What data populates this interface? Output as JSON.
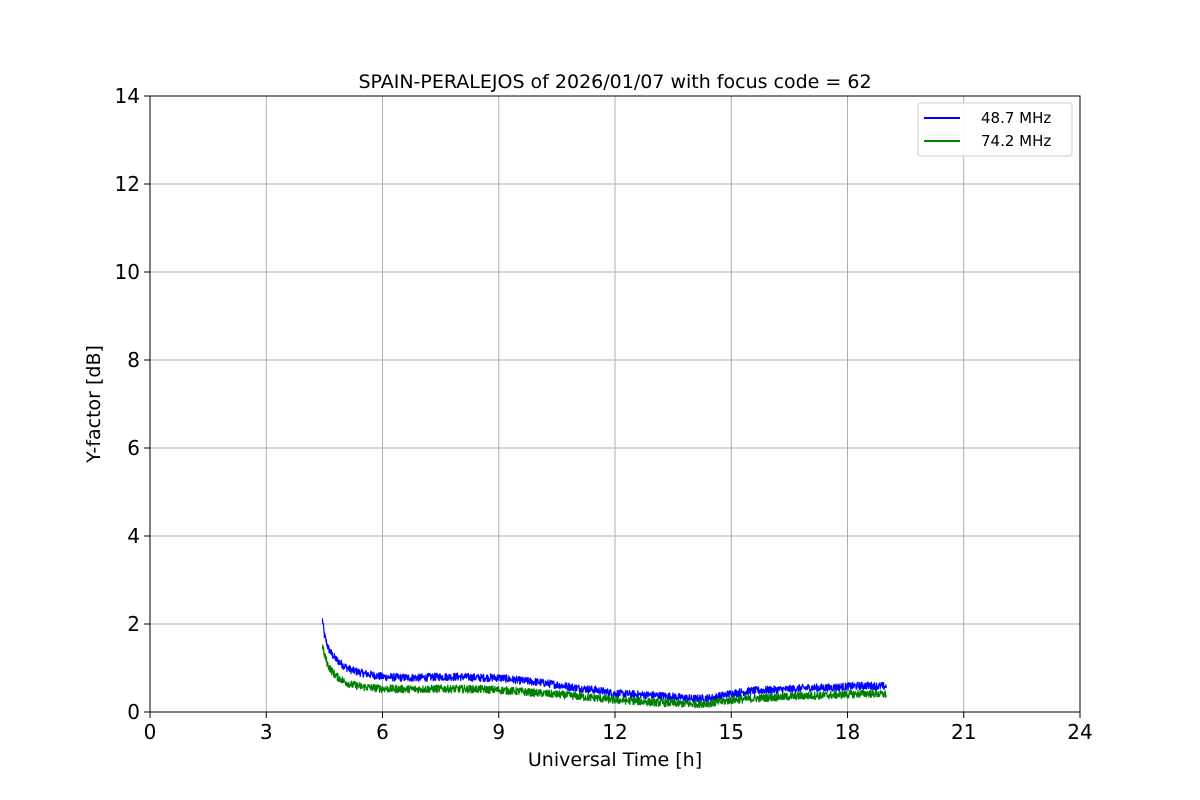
{
  "chart_data": {
    "type": "line",
    "title": "SPAIN-PERALEJOS of 2026/01/07 with focus code = 62",
    "xlabel": "Universal Time [h]",
    "ylabel": "Y-factor [dB]",
    "xlim": [
      0,
      24
    ],
    "ylim": [
      0,
      14
    ],
    "xticks": [
      0,
      3,
      6,
      9,
      12,
      15,
      18,
      21,
      24
    ],
    "yticks": [
      0,
      2,
      4,
      6,
      8,
      10,
      12,
      14
    ],
    "grid": true,
    "legend_position": "top-right",
    "series": [
      {
        "name": "48.7 MHz",
        "color": "#0000ff",
        "noise": 0.09,
        "x": [
          4.45,
          4.5,
          4.6,
          4.7,
          4.8,
          5.0,
          5.2,
          5.5,
          6.0,
          6.5,
          7.0,
          7.5,
          8.0,
          8.5,
          9.0,
          9.5,
          10.0,
          10.5,
          11.0,
          11.5,
          12.0,
          12.5,
          13.0,
          13.5,
          14.0,
          14.5,
          15.0,
          15.5,
          16.0,
          16.5,
          17.0,
          17.5,
          18.0,
          18.5,
          19.0
        ],
        "y": [
          2.1,
          1.75,
          1.45,
          1.3,
          1.2,
          1.05,
          0.95,
          0.88,
          0.8,
          0.78,
          0.78,
          0.8,
          0.8,
          0.78,
          0.78,
          0.72,
          0.68,
          0.62,
          0.55,
          0.5,
          0.42,
          0.4,
          0.38,
          0.35,
          0.3,
          0.32,
          0.42,
          0.48,
          0.5,
          0.52,
          0.55,
          0.55,
          0.58,
          0.6,
          0.58
        ]
      },
      {
        "name": "74.2 MHz",
        "color": "#008000",
        "noise": 0.09,
        "x": [
          4.45,
          4.5,
          4.6,
          4.7,
          4.8,
          5.0,
          5.2,
          5.5,
          6.0,
          6.5,
          7.0,
          7.5,
          8.0,
          8.5,
          9.0,
          9.5,
          10.0,
          10.5,
          11.0,
          11.5,
          12.0,
          12.5,
          13.0,
          13.5,
          14.0,
          14.5,
          15.0,
          15.5,
          16.0,
          16.5,
          17.0,
          17.5,
          18.0,
          18.5,
          19.0
        ],
        "y": [
          1.5,
          1.3,
          1.05,
          0.92,
          0.82,
          0.7,
          0.62,
          0.57,
          0.53,
          0.52,
          0.52,
          0.53,
          0.52,
          0.52,
          0.5,
          0.47,
          0.43,
          0.4,
          0.36,
          0.32,
          0.27,
          0.25,
          0.22,
          0.2,
          0.18,
          0.2,
          0.27,
          0.3,
          0.33,
          0.35,
          0.37,
          0.38,
          0.4,
          0.42,
          0.4
        ]
      }
    ]
  }
}
